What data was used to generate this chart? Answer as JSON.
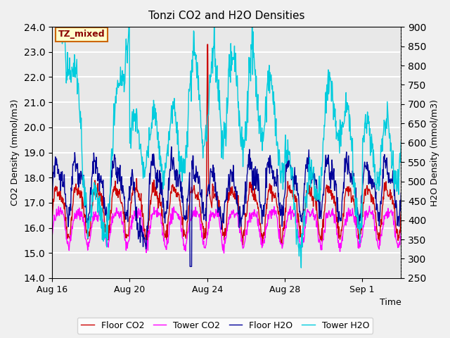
{
  "title": "Tonzi CO2 and H2O Densities",
  "xlabel": "Time",
  "ylabel_left": "CO2 Density (mmol/m3)",
  "ylabel_right": "H2O Density (mmol/m3)",
  "ylim_left": [
    14.0,
    24.0
  ],
  "ylim_right": [
    250,
    900
  ],
  "yticks_left": [
    14.0,
    15.0,
    16.0,
    17.0,
    18.0,
    19.0,
    20.0,
    21.0,
    22.0,
    23.0,
    24.0
  ],
  "yticks_right": [
    250,
    300,
    350,
    400,
    450,
    500,
    550,
    600,
    650,
    700,
    750,
    800,
    850,
    900
  ],
  "xtick_labels": [
    "Aug 16",
    "Aug 20",
    "Aug 24",
    "Aug 28",
    "Sep 1"
  ],
  "xtick_positions_days": [
    0,
    4,
    8,
    12,
    16
  ],
  "colors": {
    "floor_co2": "#cc0000",
    "tower_co2": "#ff00ff",
    "floor_h2o": "#000099",
    "tower_h2o": "#00ccdd"
  },
  "legend_labels": [
    "Floor CO2",
    "Tower CO2",
    "Floor H2O",
    "Tower H2O"
  ],
  "annotation_text": "TZ_mixed",
  "annotation_box_facecolor": "#ffffcc",
  "annotation_box_edgecolor": "#cc6600",
  "background_color": "#e8e8e8",
  "grid_color": "#ffffff",
  "linewidth": 1.0
}
